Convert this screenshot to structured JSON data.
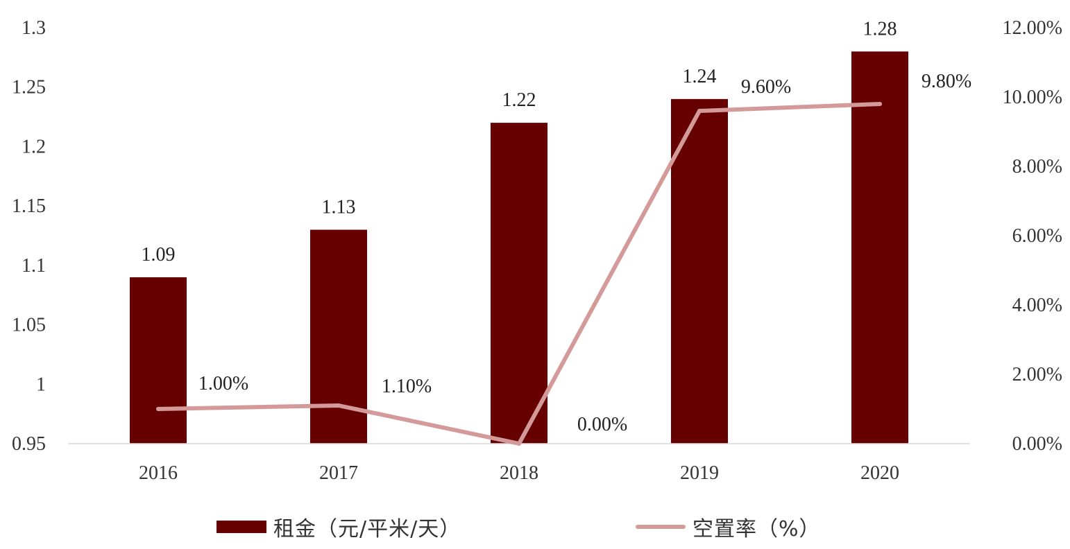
{
  "chart_data": {
    "type": "bar",
    "categories": [
      "2016",
      "2017",
      "2018",
      "2019",
      "2020"
    ],
    "series": [
      {
        "name": "租金（元/平米/天）",
        "type": "bar",
        "axis": "left",
        "color": "#660000",
        "values": [
          1.09,
          1.13,
          1.22,
          1.24,
          1.28
        ],
        "data_labels": [
          "1.09",
          "1.13",
          "1.22",
          "1.24",
          "1.28"
        ]
      },
      {
        "name": "空置率（%）",
        "type": "line",
        "axis": "right",
        "color": "#d49a9a",
        "values": [
          1.0,
          1.1,
          0.0,
          9.6,
          9.8
        ],
        "data_labels": [
          "1.00%",
          "1.10%",
          "0.00%",
          "9.60%",
          "9.80%"
        ]
      }
    ],
    "y_left": {
      "lim": [
        0.95,
        1.3
      ],
      "ticks": [
        0.95,
        1,
        1.05,
        1.1,
        1.15,
        1.2,
        1.25,
        1.3
      ],
      "tick_labels": [
        "0.95",
        "1",
        "1.05",
        "1.1",
        "1.15",
        "1.2",
        "1.25",
        "1.3"
      ]
    },
    "y_right": {
      "lim": [
        0,
        12
      ],
      "ticks": [
        0,
        2,
        4,
        6,
        8,
        10,
        12
      ],
      "tick_labels": [
        "0.00%",
        "2.00%",
        "4.00%",
        "6.00%",
        "8.00%",
        "10.00%",
        "12.00%"
      ]
    },
    "grid": false,
    "legend_position": "bottom"
  }
}
